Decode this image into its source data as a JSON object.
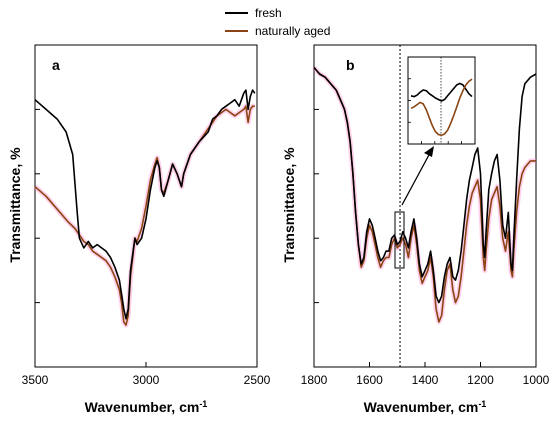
{
  "colors": {
    "fresh": "#000000",
    "aged": "#8B4513",
    "highlight": "#ff7ac8"
  },
  "legend": {
    "fresh": "fresh",
    "aged": "naturally aged"
  },
  "chart_data": [
    {
      "panel": "a",
      "type": "line",
      "xlabel": "Wavenumber, cm",
      "xlabel_sup": "-1",
      "ylabel": "Transmittance, %",
      "xlim": [
        3500,
        2500
      ],
      "ylim": [
        0,
        100
      ],
      "x_reversed": true,
      "xticks": [
        3500,
        3000,
        2500
      ],
      "xtick_labels": [
        "3500",
        "3000",
        "2500"
      ],
      "series": [
        {
          "name": "fresh",
          "points": [
            [
              3500,
              83
            ],
            [
              3450,
              80
            ],
            [
              3400,
              77
            ],
            [
              3360,
              73
            ],
            [
              3330,
              66
            ],
            [
              3310,
              48
            ],
            [
              3300,
              40
            ],
            [
              3280,
              37
            ],
            [
              3260,
              39
            ],
            [
              3240,
              37
            ],
            [
              3220,
              38
            ],
            [
              3200,
              37
            ],
            [
              3180,
              36
            ],
            [
              3160,
              34
            ],
            [
              3140,
              31
            ],
            [
              3120,
              27
            ],
            [
              3100,
              18
            ],
            [
              3090,
              15
            ],
            [
              3080,
              18
            ],
            [
              3070,
              30
            ],
            [
              3050,
              40
            ],
            [
              3040,
              38
            ],
            [
              3020,
              40
            ],
            [
              3000,
              46
            ],
            [
              2980,
              55
            ],
            [
              2960,
              62
            ],
            [
              2950,
              64
            ],
            [
              2940,
              62
            ],
            [
              2930,
              55
            ],
            [
              2920,
              53
            ],
            [
              2900,
              58
            ],
            [
              2880,
              63
            ],
            [
              2860,
              60
            ],
            [
              2840,
              56
            ],
            [
              2830,
              60
            ],
            [
              2800,
              66
            ],
            [
              2760,
              70
            ],
            [
              2720,
              73
            ],
            [
              2700,
              77
            ],
            [
              2680,
              78
            ],
            [
              2660,
              80
            ],
            [
              2640,
              81
            ],
            [
              2620,
              82
            ],
            [
              2600,
              83
            ],
            [
              2580,
              81
            ],
            [
              2560,
              85
            ],
            [
              2550,
              86
            ],
            [
              2540,
              80
            ],
            [
              2530,
              84
            ],
            [
              2520,
              86
            ],
            [
              2510,
              85
            ]
          ]
        },
        {
          "name": "naturally aged",
          "points": [
            [
              3500,
              56
            ],
            [
              3450,
              53
            ],
            [
              3400,
              49
            ],
            [
              3350,
              45
            ],
            [
              3320,
              43
            ],
            [
              3300,
              41
            ],
            [
              3280,
              39
            ],
            [
              3260,
              38
            ],
            [
              3240,
              36
            ],
            [
              3220,
              35
            ],
            [
              3200,
              34
            ],
            [
              3180,
              33
            ],
            [
              3160,
              31
            ],
            [
              3140,
              28
            ],
            [
              3120,
              24
            ],
            [
              3110,
              20
            ],
            [
              3100,
              14
            ],
            [
              3090,
              13
            ],
            [
              3080,
              16
            ],
            [
              3070,
              28
            ],
            [
              3050,
              40
            ],
            [
              3040,
              39
            ],
            [
              3020,
              43
            ],
            [
              3000,
              50
            ],
            [
              2980,
              58
            ],
            [
              2960,
              63
            ],
            [
              2950,
              65
            ],
            [
              2940,
              62
            ],
            [
              2930,
              55
            ],
            [
              2920,
              54
            ],
            [
              2900,
              58
            ],
            [
              2880,
              63
            ],
            [
              2860,
              60
            ],
            [
              2840,
              56
            ],
            [
              2830,
              60
            ],
            [
              2800,
              66
            ],
            [
              2760,
              70
            ],
            [
              2720,
              74
            ],
            [
              2700,
              76
            ],
            [
              2680,
              78
            ],
            [
              2660,
              79
            ],
            [
              2640,
              80
            ],
            [
              2620,
              79
            ],
            [
              2600,
              78
            ],
            [
              2580,
              79
            ],
            [
              2560,
              80
            ],
            [
              2550,
              81
            ],
            [
              2540,
              76
            ],
            [
              2530,
              80
            ],
            [
              2520,
              81
            ],
            [
              2510,
              81
            ]
          ]
        }
      ]
    },
    {
      "panel": "b",
      "type": "line",
      "xlabel": "Wavenumber, cm",
      "xlabel_sup": "-1",
      "ylabel": "Transmittance, %",
      "xlim": [
        1800,
        1000
      ],
      "ylim": [
        0,
        100
      ],
      "x_reversed": true,
      "xticks": [
        1800,
        1600,
        1400,
        1200,
        1000
      ],
      "xtick_labels": [
        "1800",
        "1600",
        "1400",
        "1200",
        "1000"
      ],
      "reference_line_x": 1490,
      "series": [
        {
          "name": "fresh",
          "points": [
            [
              1800,
              93
            ],
            [
              1780,
              91
            ],
            [
              1760,
              90
            ],
            [
              1740,
              88
            ],
            [
              1720,
              86
            ],
            [
              1700,
              82
            ],
            [
              1690,
              80
            ],
            [
              1680,
              76
            ],
            [
              1670,
              70
            ],
            [
              1660,
              60
            ],
            [
              1650,
              48
            ],
            [
              1640,
              38
            ],
            [
              1630,
              32
            ],
            [
              1620,
              34
            ],
            [
              1610,
              42
            ],
            [
              1600,
              46
            ],
            [
              1590,
              44
            ],
            [
              1580,
              40
            ],
            [
              1570,
              36
            ],
            [
              1560,
              33
            ],
            [
              1550,
              34
            ],
            [
              1540,
              36
            ],
            [
              1530,
              36
            ],
            [
              1520,
              40
            ],
            [
              1510,
              41
            ],
            [
              1500,
              38
            ],
            [
              1490,
              39
            ],
            [
              1480,
              42
            ],
            [
              1470,
              40
            ],
            [
              1460,
              37
            ],
            [
              1450,
              42
            ],
            [
              1440,
              46
            ],
            [
              1430,
              40
            ],
            [
              1420,
              32
            ],
            [
              1410,
              28
            ],
            [
              1400,
              30
            ],
            [
              1390,
              32
            ],
            [
              1380,
              36
            ],
            [
              1370,
              30
            ],
            [
              1360,
              22
            ],
            [
              1350,
              20
            ],
            [
              1340,
              22
            ],
            [
              1330,
              28
            ],
            [
              1320,
              32
            ],
            [
              1310,
              34
            ],
            [
              1300,
              28
            ],
            [
              1290,
              27
            ],
            [
              1280,
              30
            ],
            [
              1270,
              36
            ],
            [
              1260,
              44
            ],
            [
              1250,
              52
            ],
            [
              1240,
              58
            ],
            [
              1230,
              62
            ],
            [
              1220,
              66
            ],
            [
              1210,
              68
            ],
            [
              1200,
              60
            ],
            [
              1190,
              38
            ],
            [
              1185,
              34
            ],
            [
              1180,
              42
            ],
            [
              1170,
              55
            ],
            [
              1160,
              60
            ],
            [
              1150,
              64
            ],
            [
              1140,
              66
            ],
            [
              1130,
              58
            ],
            [
              1120,
              44
            ],
            [
              1110,
              40
            ],
            [
              1100,
              48
            ],
            [
              1090,
              32
            ],
            [
              1085,
              30
            ],
            [
              1080,
              40
            ],
            [
              1070,
              58
            ],
            [
              1060,
              74
            ],
            [
              1050,
              84
            ],
            [
              1040,
              88
            ],
            [
              1020,
              90
            ],
            [
              1000,
              91
            ]
          ]
        },
        {
          "name": "naturally aged",
          "points": [
            [
              1800,
              93
            ],
            [
              1780,
              91
            ],
            [
              1760,
              90
            ],
            [
              1740,
              88
            ],
            [
              1720,
              86
            ],
            [
              1700,
              82
            ],
            [
              1690,
              80
            ],
            [
              1680,
              76
            ],
            [
              1670,
              70
            ],
            [
              1660,
              60
            ],
            [
              1650,
              48
            ],
            [
              1640,
              38
            ],
            [
              1630,
              31
            ],
            [
              1620,
              33
            ],
            [
              1610,
              40
            ],
            [
              1600,
              44
            ],
            [
              1590,
              42
            ],
            [
              1580,
              38
            ],
            [
              1570,
              34
            ],
            [
              1560,
              31
            ],
            [
              1550,
              33
            ],
            [
              1540,
              34
            ],
            [
              1530,
              34
            ],
            [
              1520,
              38
            ],
            [
              1510,
              40
            ],
            [
              1500,
              37
            ],
            [
              1490,
              38
            ],
            [
              1480,
              40
            ],
            [
              1470,
              38
            ],
            [
              1460,
              34
            ],
            [
              1450,
              40
            ],
            [
              1440,
              44
            ],
            [
              1430,
              38
            ],
            [
              1420,
              30
            ],
            [
              1410,
              26
            ],
            [
              1400,
              28
            ],
            [
              1390,
              30
            ],
            [
              1380,
              34
            ],
            [
              1370,
              28
            ],
            [
              1360,
              18
            ],
            [
              1350,
              14
            ],
            [
              1340,
              16
            ],
            [
              1330,
              24
            ],
            [
              1320,
              30
            ],
            [
              1310,
              32
            ],
            [
              1300,
              24
            ],
            [
              1290,
              20
            ],
            [
              1280,
              22
            ],
            [
              1270,
              28
            ],
            [
              1260,
              36
            ],
            [
              1250,
              44
            ],
            [
              1240,
              50
            ],
            [
              1230,
              54
            ],
            [
              1220,
              56
            ],
            [
              1210,
              58
            ],
            [
              1200,
              52
            ],
            [
              1190,
              34
            ],
            [
              1185,
              30
            ],
            [
              1180,
              36
            ],
            [
              1170,
              46
            ],
            [
              1160,
              52
            ],
            [
              1150,
              54
            ],
            [
              1140,
              56
            ],
            [
              1130,
              50
            ],
            [
              1120,
              40
            ],
            [
              1110,
              36
            ],
            [
              1100,
              42
            ],
            [
              1090,
              30
            ],
            [
              1085,
              28
            ],
            [
              1080,
              36
            ],
            [
              1070,
              48
            ],
            [
              1060,
              56
            ],
            [
              1050,
              60
            ],
            [
              1040,
              62
            ],
            [
              1020,
              64
            ],
            [
              1000,
              64
            ]
          ]
        }
      ]
    }
  ],
  "inset": {
    "series": [
      {
        "name": "fresh",
        "values": [
          0.55,
          0.54,
          0.56,
          0.6,
          0.63,
          0.62,
          0.58,
          0.55,
          0.52,
          0.5,
          0.48,
          0.5,
          0.55,
          0.6,
          0.65,
          0.7,
          0.72,
          0.7,
          0.64,
          0.58,
          0.54
        ]
      },
      {
        "name": "naturally aged",
        "values": [
          0.38,
          0.4,
          0.43,
          0.46,
          0.44,
          0.36,
          0.25,
          0.14,
          0.06,
          0.02,
          0.01,
          0.03,
          0.08,
          0.17,
          0.28,
          0.4,
          0.52,
          0.62,
          0.7,
          0.75,
          0.78
        ]
      }
    ]
  }
}
